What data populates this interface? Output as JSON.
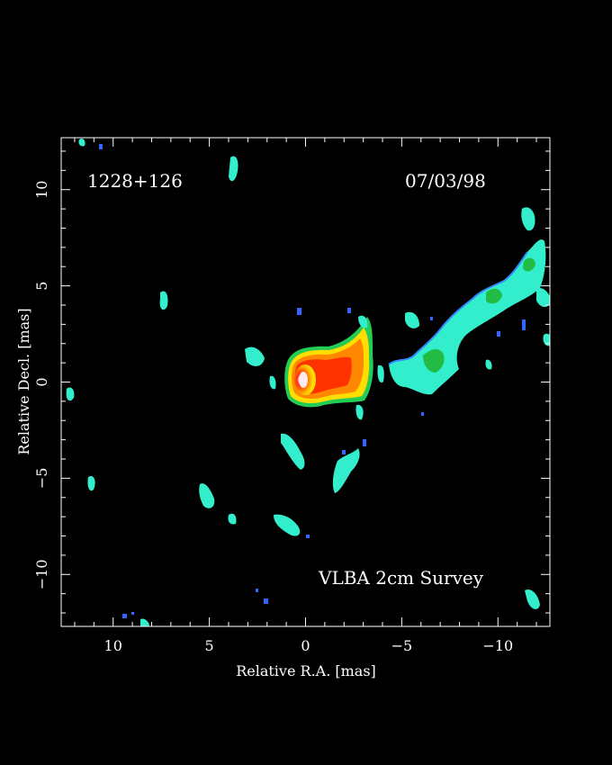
{
  "source_name": "1228+126",
  "observation_date": "07/03/98",
  "survey_label": "VLBA 2cm Survey",
  "x_axis": {
    "label": "Relative R.A. [mas]",
    "range": [
      12.7,
      -12.7
    ],
    "major_ticks": [
      10,
      5,
      0,
      -5,
      -10
    ],
    "tick_labels": [
      "10",
      "5",
      "0",
      "−5",
      "−10"
    ]
  },
  "y_axis": {
    "label": "Relative Decl. [mas]",
    "range": [
      -12.7,
      12.7
    ],
    "major_ticks": [
      10,
      5,
      0,
      -5,
      -10
    ],
    "tick_labels": [
      "10",
      "5",
      "0",
      "−5",
      "−10"
    ]
  },
  "colors": {
    "background": "#000000",
    "frame": "#ffffff",
    "core": "#ffeeee",
    "jet_red": "#ff3300",
    "jet_orange": "#ff9900",
    "jet_yellow": "#ffdd00",
    "green": "#33cc33",
    "cyan": "#33ffcc",
    "blue": "#3366ff"
  }
}
